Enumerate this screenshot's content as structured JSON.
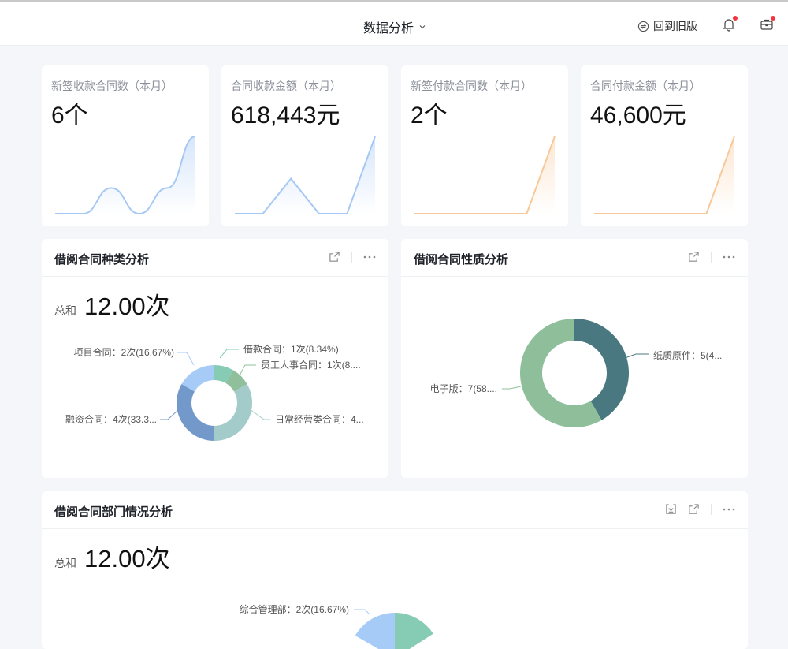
{
  "header": {
    "title": "数据分析",
    "old_version": "回到旧版",
    "icons": [
      "chevron-down-icon",
      "switch-icon",
      "bell-icon",
      "briefcase-icon"
    ],
    "notification_dot_color": "#f5333f"
  },
  "kpis": [
    {
      "label": "新签收款合同数（本月）",
      "value": "6个",
      "trend": [
        0,
        0,
        1,
        0,
        1,
        3
      ],
      "color": "#a6c8f5",
      "smooth": true
    },
    {
      "label": "合同收款金额（本月）",
      "value": "618,443元",
      "trend": [
        0,
        0,
        1,
        0,
        0,
        2.2
      ],
      "color": "#a6c8f5",
      "smooth": false
    },
    {
      "label": "新签付款合同数（本月）",
      "value": "2个",
      "trend": [
        0,
        0,
        0,
        0,
        0,
        2
      ],
      "color": "#f7c99a",
      "smooth": false
    },
    {
      "label": "合同付款金额（本月）",
      "value": "46,600元",
      "trend": [
        0,
        0,
        0,
        0,
        0,
        2
      ],
      "color": "#f7c99a",
      "smooth": false
    }
  ],
  "panels": {
    "type": {
      "title": "借阅合同种类分析",
      "sum_label": "总和",
      "sum_value": "12.00次"
    },
    "nature": {
      "title": "借阅合同性质分析"
    },
    "dept": {
      "title": "借阅合同部门情况分析",
      "sum_label": "总和",
      "sum_value": "12.00次"
    }
  },
  "chart_data": [
    {
      "type": "pie",
      "donut": true,
      "slices": [
        {
          "name": "借款合同",
          "value": 1,
          "label": "借款合同：1次(8.34%)",
          "color": "#86cbb3"
        },
        {
          "name": "员工人事合同",
          "value": 1,
          "label": "员工人事合同：1次(8....",
          "color": "#90bf9c"
        },
        {
          "name": "日常经营类合同",
          "value": 4,
          "label": "日常经营类合同：4...",
          "color": "#a2cbca"
        },
        {
          "name": "融资合同",
          "value": 4,
          "label": "融资合同：4次(33.3...",
          "color": "#7299c9"
        },
        {
          "name": "项目合同",
          "value": 2,
          "label": "项目合同：2次(16.67%)",
          "color": "#a7cbf7"
        }
      ]
    },
    {
      "type": "pie",
      "donut": true,
      "slices": [
        {
          "name": "纸质原件",
          "value": 5,
          "label": "纸质原件：5(4...",
          "color": "#4a7880"
        },
        {
          "name": "电子版",
          "value": 7,
          "label": "电子版：7(58....",
          "color": "#8fbf9a"
        }
      ]
    },
    {
      "type": "pie",
      "donut": false,
      "slices": [
        {
          "name": "综合管理部",
          "value": 2,
          "label": "综合管理部：2次(16.67%)",
          "color": "#a7cbf7"
        }
      ]
    }
  ]
}
